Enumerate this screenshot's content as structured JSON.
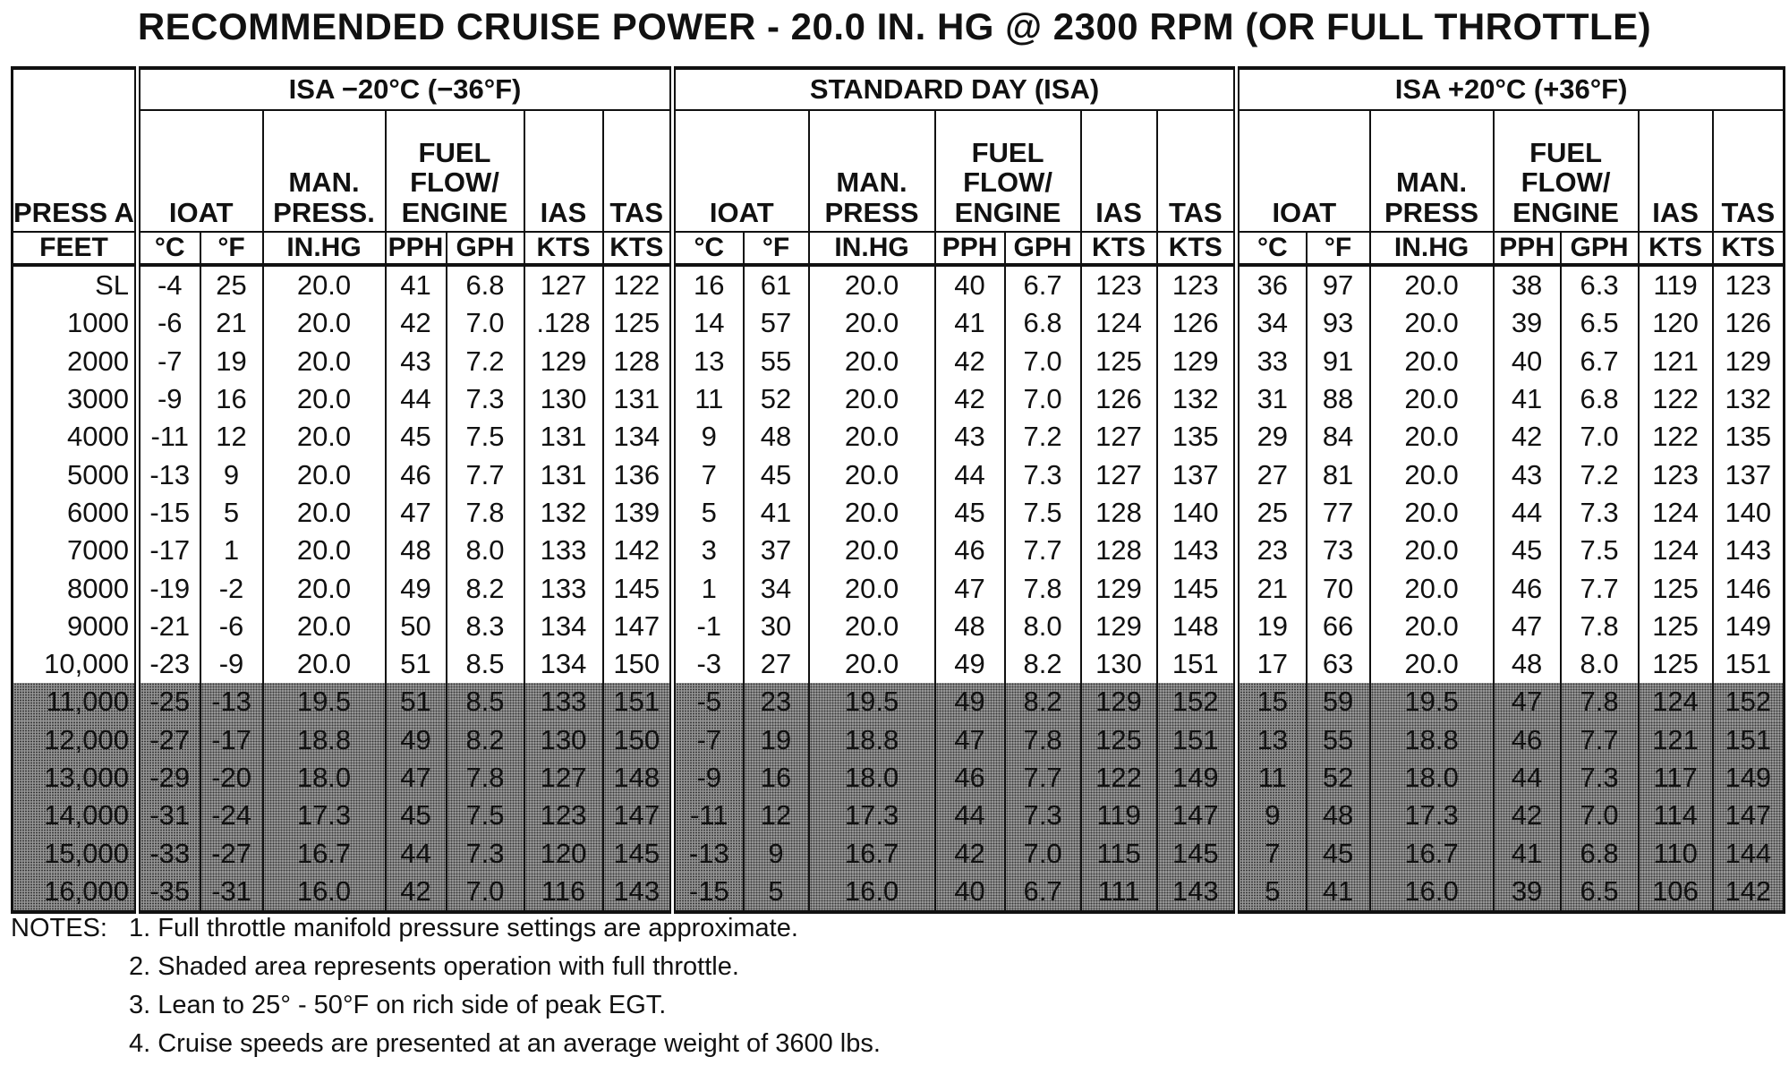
{
  "title": "RECOMMENDED CRUISE POWER - 20.0 IN. HG @ 2300 RPM (OR FULL THROTTLE)",
  "groups": [
    "ISA −20°C (−36°F)",
    "STANDARD DAY (ISA)",
    "ISA +20°C (+36°F)"
  ],
  "headers": {
    "press_alt": "PRESS ALT.",
    "ioat": "IOAT",
    "man_press_isa_minus": "MAN. PRESS.",
    "man_press": "MAN. PRESS",
    "fuel_flow": "FUEL FLOW/ ENGINE",
    "ias": "IAS",
    "tas": "TAS"
  },
  "units": {
    "feet": "FEET",
    "c": "°C",
    "f": "°F",
    "inhg": "IN.HG",
    "pph": "PPH",
    "gph": "GPH",
    "kts": "KTS"
  },
  "rows": [
    {
      "alt": "SL",
      "shaded": false,
      "cols": [
        "-4",
        "25",
        "20.0",
        "41",
        "6.8",
        "127",
        "122",
        "16",
        "61",
        "20.0",
        "40",
        "6.7",
        "123",
        "123",
        "36",
        "97",
        "20.0",
        "38",
        "6.3",
        "119",
        "123"
      ]
    },
    {
      "alt": "1000",
      "shaded": false,
      "cols": [
        "-6",
        "21",
        "20.0",
        "42",
        "7.0",
        ".128",
        "125",
        "14",
        "57",
        "20.0",
        "41",
        "6.8",
        "124",
        "126",
        "34",
        "93",
        "20.0",
        "39",
        "6.5",
        "120",
        "126"
      ]
    },
    {
      "alt": "2000",
      "shaded": false,
      "cols": [
        "-7",
        "19",
        "20.0",
        "43",
        "7.2",
        "129",
        "128",
        "13",
        "55",
        "20.0",
        "42",
        "7.0",
        "125",
        "129",
        "33",
        "91",
        "20.0",
        "40",
        "6.7",
        "121",
        "129"
      ]
    },
    {
      "alt": "3000",
      "shaded": false,
      "cols": [
        "-9",
        "16",
        "20.0",
        "44",
        "7.3",
        "130",
        "131",
        "11",
        "52",
        "20.0",
        "42",
        "7.0",
        "126",
        "132",
        "31",
        "88",
        "20.0",
        "41",
        "6.8",
        "122",
        "132"
      ]
    },
    {
      "alt": "4000",
      "shaded": false,
      "cols": [
        "-11",
        "12",
        "20.0",
        "45",
        "7.5",
        "131",
        "134",
        "9",
        "48",
        "20.0",
        "43",
        "7.2",
        "127",
        "135",
        "29",
        "84",
        "20.0",
        "42",
        "7.0",
        "122",
        "135"
      ]
    },
    {
      "alt": "5000",
      "shaded": false,
      "cols": [
        "-13",
        "9",
        "20.0",
        "46",
        "7.7",
        "131",
        "136",
        "7",
        "45",
        "20.0",
        "44",
        "7.3",
        "127",
        "137",
        "27",
        "81",
        "20.0",
        "43",
        "7.2",
        "123",
        "137"
      ]
    },
    {
      "alt": "6000",
      "shaded": false,
      "cols": [
        "-15",
        "5",
        "20.0",
        "47",
        "7.8",
        "132",
        "139",
        "5",
        "41",
        "20.0",
        "45",
        "7.5",
        "128",
        "140",
        "25",
        "77",
        "20.0",
        "44",
        "7.3",
        "124",
        "140"
      ]
    },
    {
      "alt": "7000",
      "shaded": false,
      "cols": [
        "-17",
        "1",
        "20.0",
        "48",
        "8.0",
        "133",
        "142",
        "3",
        "37",
        "20.0",
        "46",
        "7.7",
        "128",
        "143",
        "23",
        "73",
        "20.0",
        "45",
        "7.5",
        "124",
        "143"
      ]
    },
    {
      "alt": "8000",
      "shaded": false,
      "cols": [
        "-19",
        "-2",
        "20.0",
        "49",
        "8.2",
        "133",
        "145",
        "1",
        "34",
        "20.0",
        "47",
        "7.8",
        "129",
        "145",
        "21",
        "70",
        "20.0",
        "46",
        "7.7",
        "125",
        "146"
      ]
    },
    {
      "alt": "9000",
      "shaded": false,
      "cols": [
        "-21",
        "-6",
        "20.0",
        "50",
        "8.3",
        "134",
        "147",
        "-1",
        "30",
        "20.0",
        "48",
        "8.0",
        "129",
        "148",
        "19",
        "66",
        "20.0",
        "47",
        "7.8",
        "125",
        "149"
      ]
    },
    {
      "alt": "10,000",
      "shaded": false,
      "cols": [
        "-23",
        "-9",
        "20.0",
        "51",
        "8.5",
        "134",
        "150",
        "-3",
        "27",
        "20.0",
        "49",
        "8.2",
        "130",
        "151",
        "17",
        "63",
        "20.0",
        "48",
        "8.0",
        "125",
        "151"
      ]
    },
    {
      "alt": "11,000",
      "shaded": true,
      "cols": [
        "-25",
        "-13",
        "19.5",
        "51",
        "8.5",
        "133",
        "151",
        "-5",
        "23",
        "19.5",
        "49",
        "8.2",
        "129",
        "152",
        "15",
        "59",
        "19.5",
        "47",
        "7.8",
        "124",
        "152"
      ]
    },
    {
      "alt": "12,000",
      "shaded": true,
      "cols": [
        "-27",
        "-17",
        "18.8",
        "49",
        "8.2",
        "130",
        "150",
        "-7",
        "19",
        "18.8",
        "47",
        "7.8",
        "125",
        "151",
        "13",
        "55",
        "18.8",
        "46",
        "7.7",
        "121",
        "151"
      ]
    },
    {
      "alt": "13,000",
      "shaded": true,
      "cols": [
        "-29",
        "-20",
        "18.0",
        "47",
        "7.8",
        "127",
        "148",
        "-9",
        "16",
        "18.0",
        "46",
        "7.7",
        "122",
        "149",
        "11",
        "52",
        "18.0",
        "44",
        "7.3",
        "117",
        "149"
      ]
    },
    {
      "alt": "14,000",
      "shaded": true,
      "cols": [
        "-31",
        "-24",
        "17.3",
        "45",
        "7.5",
        "123",
        "147",
        "-11",
        "12",
        "17.3",
        "44",
        "7.3",
        "119",
        "147",
        "9",
        "48",
        "17.3",
        "42",
        "7.0",
        "114",
        "147"
      ]
    },
    {
      "alt": "15,000",
      "shaded": true,
      "cols": [
        "-33",
        "-27",
        "16.7",
        "44",
        "7.3",
        "120",
        "145",
        "-13",
        "9",
        "16.7",
        "42",
        "7.0",
        "115",
        "145",
        "7",
        "45",
        "16.7",
        "41",
        "6.8",
        "110",
        "144"
      ]
    },
    {
      "alt": "16,000",
      "shaded": true,
      "cols": [
        "-35",
        "-31",
        "16.0",
        "42",
        "7.0",
        "116",
        "143",
        "-15",
        "5",
        "16.0",
        "40",
        "6.7",
        "111",
        "143",
        "5",
        "41",
        "16.0",
        "39",
        "6.5",
        "106",
        "142"
      ]
    }
  ],
  "notes": {
    "label": "NOTES:",
    "items": [
      "1. Full throttle manifold pressure settings are approximate.",
      "2. Shaded area represents operation with full throttle.",
      "3. Lean to 25° - 50°F on rich side of peak EGT.",
      "4. Cruise speeds are presented at an average weight of 3600 lbs."
    ]
  }
}
